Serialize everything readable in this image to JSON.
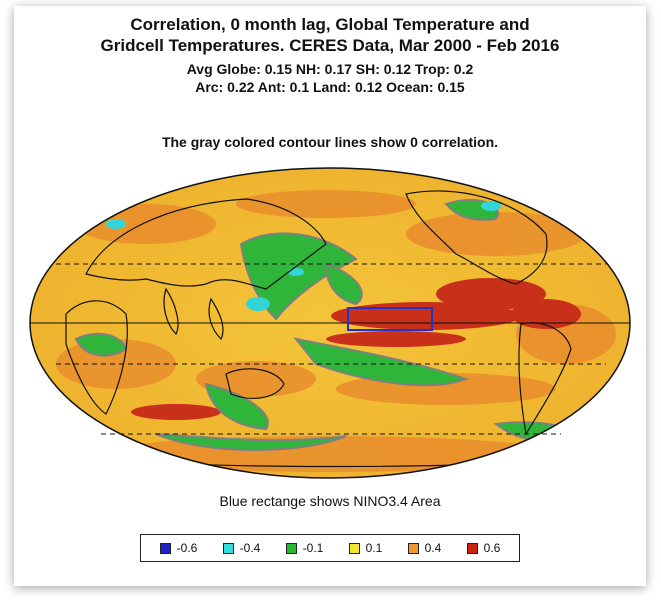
{
  "title": {
    "line1": "Correlation, 0 month lag, Global Temperature and",
    "line2": "Gridcell Temperatures. CERES Data, Mar 2000 - Feb 2016"
  },
  "stats": {
    "line1": "Avg Globe: 0.15  NH: 0.17  SH: 0.12  Trop: 0.2",
    "line2": "Arc: 0.22  Ant: 0.1  Land: 0.12  Ocean: 0.15"
  },
  "note": "The gray colored contour lines show 0 correlation.",
  "caption": "Blue rectange shows NINO3.4 Area",
  "legend": [
    {
      "label": "-0.6",
      "color": "#2222cc"
    },
    {
      "label": "-0.4",
      "color": "#33dddd"
    },
    {
      "label": "-0.1",
      "color": "#22bb33"
    },
    {
      "label": "0.1",
      "color": "#f2e62e"
    },
    {
      "label": "0.4",
      "color": "#ee9933"
    },
    {
      "label": "0.6",
      "color": "#cc2211"
    }
  ],
  "colors": {
    "ocean_base": "#f0c030",
    "nino_box": "#2233cc",
    "contour": "#808080"
  }
}
